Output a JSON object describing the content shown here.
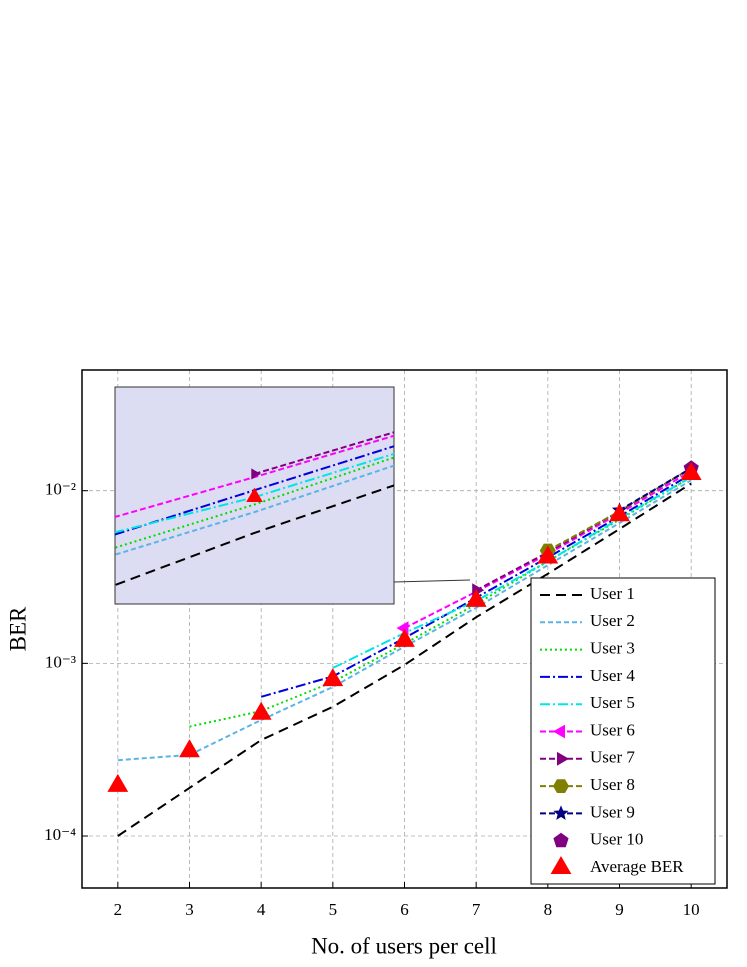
{
  "chart_data": {
    "type": "line",
    "x_label": "No. of users per cell",
    "y_label": "BER",
    "x": [
      2,
      3,
      4,
      5,
      6,
      7,
      8,
      9,
      10
    ],
    "xlim": [
      1.5,
      10.5
    ],
    "xticks": [
      2,
      3,
      4,
      5,
      6,
      7,
      8,
      9,
      10
    ],
    "ylim": [
      5e-05,
      0.05
    ],
    "yticks": [
      {
        "value": 0.0001,
        "label": "10⁻⁴"
      },
      {
        "value": 0.001,
        "label": "10⁻³"
      },
      {
        "value": 0.01,
        "label": "10⁻²"
      }
    ],
    "log_y": true,
    "grid": true,
    "legend": "lower right",
    "inset": {
      "xlim": [
        6.5,
        7.5
      ],
      "ylim": [
        0.0012,
        0.0045
      ],
      "fill": "#dcdcf2"
    },
    "series": [
      {
        "name": "User 1",
        "color": "#000000",
        "dash": "10,6",
        "marker": null,
        "values": [
          0.0001,
          0.00019,
          0.00036,
          0.00056,
          0.00098,
          0.00185,
          0.0033,
          0.006,
          0.011
        ]
      },
      {
        "name": "User 2",
        "color": "#5ab4e8",
        "dash": "5,3",
        "marker": null,
        "values": [
          0.000275,
          0.000295,
          0.00047,
          0.00073,
          0.00125,
          0.0021,
          0.0037,
          0.0065,
          0.0115
        ]
      },
      {
        "name": "User 3",
        "color": "#00dd00",
        "dash": "2,3",
        "marker": null,
        "values": [
          null,
          0.00043,
          0.00053,
          0.00078,
          0.0013,
          0.0022,
          0.0039,
          0.0068,
          0.012
        ]
      },
      {
        "name": "User 4",
        "color": "#0000dd",
        "dash": "10,3,2,3",
        "marker": null,
        "values": [
          null,
          null,
          0.00064,
          0.00084,
          0.0014,
          0.0024,
          0.0041,
          0.0071,
          0.0125
        ]
      },
      {
        "name": "User 5",
        "color": "#00e5e5",
        "dash": "10,3,2,3",
        "marker": null,
        "values": [
          null,
          null,
          null,
          0.00094,
          0.0015,
          0.0023,
          0.0039,
          0.0069,
          0.012
        ]
      },
      {
        "name": "User 6",
        "color": "#ff00ff",
        "dash": "6,3",
        "marker": "left",
        "values": [
          null,
          null,
          null,
          null,
          0.0016,
          0.0026,
          0.0043,
          0.0074,
          0.013
        ]
      },
      {
        "name": "User 7",
        "color": "#800080",
        "dash": "6,3",
        "marker": "right",
        "values": [
          null,
          null,
          null,
          null,
          null,
          0.00265,
          0.0044,
          0.0076,
          0.0135
        ]
      },
      {
        "name": "User 8",
        "color": "#808000",
        "dash": "6,3",
        "marker": "hexagon",
        "values": [
          null,
          null,
          null,
          null,
          null,
          null,
          0.0045,
          0.0076,
          0.0135
        ]
      },
      {
        "name": "User 9",
        "color": "#000080",
        "dash": "6,3",
        "marker": "star",
        "values": [
          null,
          null,
          null,
          null,
          null,
          null,
          null,
          0.0077,
          0.0135
        ]
      },
      {
        "name": "User 10",
        "color": "#800080",
        "dash": null,
        "marker": "pentagon",
        "values": [
          null,
          null,
          null,
          null,
          null,
          null,
          null,
          null,
          0.0135
        ]
      },
      {
        "name": "Average BER",
        "color": "#ff0000",
        "dash": null,
        "marker": "triangle",
        "line": false,
        "values": [
          0.000195,
          0.00031,
          0.00051,
          0.0008,
          0.00135,
          0.0023,
          0.0041,
          0.0072,
          0.0125
        ]
      }
    ]
  }
}
